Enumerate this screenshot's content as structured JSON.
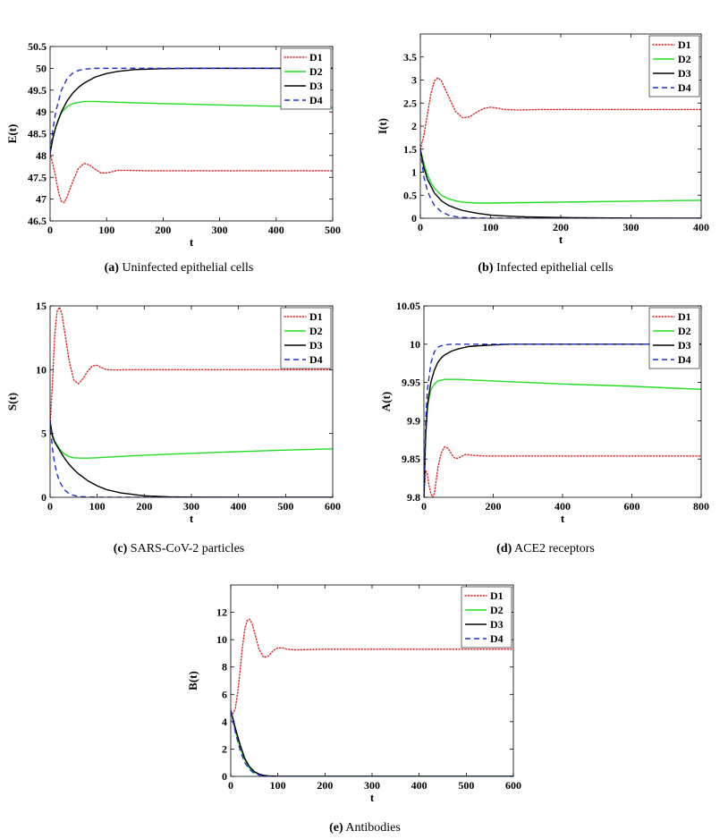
{
  "figure": {
    "captions": [
      {
        "letter": "(a)",
        "text": "Uninfected epithelial cells"
      },
      {
        "letter": "(b)",
        "text": "Infected epithelial cells"
      },
      {
        "letter": "(c)",
        "text": "SARS-CoV-2 particles"
      },
      {
        "letter": "(d)",
        "text": "ACE2 receptors"
      },
      {
        "letter": "(e)",
        "text": "Antibodies"
      }
    ]
  },
  "legend_styles": {
    "D1": {
      "color": "#e02020",
      "dash": "dotted"
    },
    "D2": {
      "color": "#22dd22",
      "dash": "solid"
    },
    "D3": {
      "color": "#000000",
      "dash": "solid"
    },
    "D4": {
      "color": "#1f2fd0",
      "dash": "dashed"
    }
  },
  "chart_data": [
    {
      "type": "line",
      "panel": "a",
      "xlabel": "t",
      "ylabel": "E(t)",
      "xlim": [
        0,
        500
      ],
      "ylim": [
        46.5,
        50.5
      ],
      "xticks": [
        0,
        100,
        200,
        300,
        400,
        500
      ],
      "yticks": [
        46.5,
        47,
        47.5,
        48,
        48.5,
        49,
        49.5,
        50,
        50.5
      ],
      "legend": [
        "D1",
        "D2",
        "D3",
        "D4"
      ],
      "series": [
        {
          "name": "D1",
          "x": [
            0,
            5,
            10,
            15,
            20,
            25,
            30,
            40,
            50,
            60,
            70,
            80,
            90,
            100,
            110,
            120,
            140,
            170,
            200,
            300,
            400,
            500
          ],
          "y": [
            48.05,
            47.8,
            47.5,
            47.15,
            46.95,
            46.92,
            47.05,
            47.4,
            47.7,
            47.82,
            47.78,
            47.68,
            47.6,
            47.6,
            47.63,
            47.66,
            47.66,
            47.65,
            47.65,
            47.65,
            47.65,
            47.65
          ]
        },
        {
          "name": "D2",
          "x": [
            0,
            5,
            10,
            15,
            20,
            30,
            40,
            50,
            60,
            70,
            80,
            100,
            150,
            200,
            300,
            400,
            500
          ],
          "y": [
            48.05,
            48.4,
            48.65,
            48.85,
            48.98,
            49.12,
            49.19,
            49.22,
            49.24,
            49.24,
            49.24,
            49.23,
            49.21,
            49.19,
            49.16,
            49.13,
            49.1
          ]
        },
        {
          "name": "D3",
          "x": [
            0,
            5,
            10,
            20,
            30,
            40,
            50,
            60,
            80,
            100,
            120,
            150,
            200,
            250,
            300,
            400,
            500
          ],
          "y": [
            48.05,
            48.4,
            48.65,
            49.0,
            49.25,
            49.43,
            49.56,
            49.66,
            49.8,
            49.88,
            49.93,
            49.97,
            49.99,
            50.0,
            50.0,
            50.0,
            50.0
          ]
        },
        {
          "name": "D4",
          "x": [
            0,
            5,
            10,
            20,
            30,
            40,
            50,
            60,
            80,
            100,
            150,
            200,
            300,
            400,
            500
          ],
          "y": [
            48.05,
            48.6,
            49.0,
            49.5,
            49.76,
            49.89,
            49.95,
            49.98,
            50.0,
            50.0,
            50.0,
            50.0,
            50.0,
            50.0,
            50.0
          ]
        }
      ]
    },
    {
      "type": "line",
      "panel": "b",
      "xlabel": "t",
      "ylabel": "I(t)",
      "xlim": [
        0,
        400
      ],
      "ylim": [
        0,
        4
      ],
      "xticks": [
        0,
        100,
        200,
        300,
        400
      ],
      "yticks": [
        0,
        0.5,
        1,
        1.5,
        2,
        2.5,
        3,
        3.5
      ],
      "legend": [
        "D1",
        "D2",
        "D3",
        "D4"
      ],
      "series": [
        {
          "name": "D1",
          "x": [
            0,
            5,
            10,
            15,
            20,
            25,
            30,
            40,
            50,
            60,
            70,
            80,
            90,
            100,
            110,
            120,
            140,
            170,
            200,
            300,
            400
          ],
          "y": [
            1.5,
            1.8,
            2.25,
            2.7,
            2.98,
            3.05,
            2.98,
            2.65,
            2.32,
            2.18,
            2.2,
            2.3,
            2.38,
            2.41,
            2.39,
            2.36,
            2.35,
            2.36,
            2.36,
            2.36,
            2.36
          ]
        },
        {
          "name": "D2",
          "x": [
            0,
            5,
            10,
            15,
            20,
            30,
            40,
            50,
            60,
            80,
            100,
            150,
            200,
            300,
            400
          ],
          "y": [
            1.5,
            1.2,
            0.95,
            0.78,
            0.65,
            0.5,
            0.42,
            0.38,
            0.35,
            0.33,
            0.33,
            0.34,
            0.35,
            0.37,
            0.39
          ]
        },
        {
          "name": "D3",
          "x": [
            0,
            5,
            10,
            20,
            30,
            40,
            50,
            60,
            80,
            100,
            120,
            150,
            200,
            250,
            300,
            400
          ],
          "y": [
            1.5,
            1.1,
            0.85,
            0.55,
            0.38,
            0.28,
            0.22,
            0.17,
            0.11,
            0.07,
            0.05,
            0.03,
            0.015,
            0.008,
            0.004,
            0.001
          ]
        },
        {
          "name": "D4",
          "x": [
            0,
            5,
            10,
            15,
            20,
            30,
            40,
            50,
            60,
            80,
            100,
            150,
            200,
            400
          ],
          "y": [
            1.5,
            0.9,
            0.6,
            0.42,
            0.28,
            0.14,
            0.07,
            0.035,
            0.018,
            0.005,
            0.001,
            0.0,
            0.0,
            0.0
          ]
        }
      ]
    },
    {
      "type": "line",
      "panel": "c",
      "xlabel": "t",
      "ylabel": "S(t)",
      "xlim": [
        0,
        600
      ],
      "ylim": [
        0,
        15
      ],
      "xticks": [
        0,
        100,
        200,
        300,
        400,
        500,
        600
      ],
      "yticks": [
        0,
        5,
        10,
        15
      ],
      "legend": [
        "D1",
        "D2",
        "D3",
        "D4"
      ],
      "series": [
        {
          "name": "D1",
          "x": [
            0,
            5,
            10,
            15,
            20,
            25,
            30,
            40,
            50,
            60,
            70,
            80,
            90,
            100,
            110,
            120,
            140,
            170,
            200,
            300,
            400,
            500,
            600
          ],
          "y": [
            5.5,
            9.0,
            12.8,
            14.6,
            14.9,
            14.4,
            13.2,
            10.8,
            9.2,
            8.9,
            9.3,
            9.9,
            10.3,
            10.35,
            10.15,
            10.0,
            9.98,
            10.0,
            10.0,
            10.0,
            10.0,
            10.0,
            10.0
          ]
        },
        {
          "name": "D2",
          "x": [
            0,
            5,
            10,
            20,
            30,
            40,
            50,
            60,
            70,
            80,
            100,
            150,
            200,
            300,
            400,
            500,
            600
          ],
          "y": [
            5.5,
            4.9,
            4.4,
            3.8,
            3.4,
            3.2,
            3.1,
            3.08,
            3.07,
            3.07,
            3.1,
            3.2,
            3.3,
            3.45,
            3.58,
            3.7,
            3.8
          ]
        },
        {
          "name": "D3",
          "x": [
            0,
            5,
            10,
            20,
            30,
            40,
            50,
            60,
            80,
            100,
            120,
            150,
            200,
            250,
            300,
            400,
            600
          ],
          "y": [
            6.0,
            4.8,
            4.3,
            3.7,
            3.1,
            2.6,
            2.2,
            1.85,
            1.3,
            0.9,
            0.6,
            0.35,
            0.12,
            0.04,
            0.015,
            0.002,
            0.0
          ]
        },
        {
          "name": "D4",
          "x": [
            0,
            5,
            10,
            15,
            20,
            30,
            40,
            50,
            60,
            80,
            100,
            150,
            200,
            600
          ],
          "y": [
            6.0,
            3.8,
            2.6,
            1.8,
            1.25,
            0.6,
            0.3,
            0.15,
            0.07,
            0.02,
            0.005,
            0.0,
            0.0,
            0.0
          ]
        }
      ]
    },
    {
      "type": "line",
      "panel": "d",
      "xlabel": "t",
      "ylabel": "A(t)",
      "xlim": [
        0,
        800
      ],
      "ylim": [
        9.8,
        10.05
      ],
      "xticks": [
        0,
        200,
        400,
        600,
        800
      ],
      "yticks": [
        9.8,
        9.85,
        9.9,
        9.95,
        10,
        10.05
      ],
      "legend": [
        "D1",
        "D2",
        "D3",
        "D4"
      ],
      "series": [
        {
          "name": "D1",
          "x": [
            0,
            5,
            10,
            15,
            20,
            25,
            30,
            35,
            40,
            50,
            60,
            70,
            80,
            90,
            100,
            110,
            120,
            140,
            170,
            200,
            400,
            600,
            800
          ],
          "y": [
            9.8,
            9.835,
            9.83,
            9.815,
            9.805,
            9.8,
            9.805,
            9.82,
            9.838,
            9.858,
            9.866,
            9.864,
            9.856,
            9.851,
            9.851,
            9.854,
            9.856,
            9.855,
            9.854,
            9.854,
            9.854,
            9.854,
            9.854
          ]
        },
        {
          "name": "D2",
          "x": [
            0,
            5,
            10,
            15,
            20,
            30,
            40,
            60,
            80,
            100,
            150,
            200,
            400,
            600,
            800
          ],
          "y": [
            9.8,
            9.88,
            9.915,
            9.93,
            9.94,
            9.948,
            9.952,
            9.954,
            9.954,
            9.954,
            9.953,
            9.952,
            9.948,
            9.945,
            9.941
          ]
        },
        {
          "name": "D3",
          "x": [
            0,
            5,
            10,
            20,
            30,
            40,
            50,
            60,
            80,
            100,
            130,
            160,
            200,
            250,
            300,
            400,
            800
          ],
          "y": [
            9.8,
            9.88,
            9.92,
            9.95,
            9.966,
            9.976,
            9.982,
            9.986,
            9.991,
            9.994,
            9.997,
            9.998,
            9.999,
            10.0,
            10.0,
            10.0,
            10.0
          ]
        },
        {
          "name": "D4",
          "x": [
            0,
            5,
            10,
            20,
            30,
            40,
            50,
            60,
            80,
            100,
            150,
            200,
            800
          ],
          "y": [
            9.8,
            9.9,
            9.94,
            9.975,
            9.99,
            9.996,
            9.998,
            9.999,
            10.0,
            10.0,
            10.0,
            10.0,
            10.0
          ]
        }
      ]
    },
    {
      "type": "line",
      "panel": "e",
      "xlabel": "t",
      "ylabel": "B(t)",
      "xlim": [
        0,
        600
      ],
      "ylim": [
        0,
        14
      ],
      "xticks": [
        0,
        100,
        200,
        300,
        400,
        500,
        600
      ],
      "yticks": [
        0,
        2,
        4,
        6,
        8,
        10,
        12
      ],
      "legend": [
        "D1",
        "D2",
        "D3",
        "D4"
      ],
      "series": [
        {
          "name": "D1",
          "x": [
            0,
            5,
            10,
            15,
            20,
            25,
            30,
            35,
            40,
            45,
            50,
            60,
            70,
            80,
            90,
            100,
            110,
            120,
            140,
            170,
            200,
            300,
            400,
            500,
            600
          ],
          "y": [
            4.8,
            4.6,
            5.0,
            6.2,
            7.8,
            9.5,
            10.8,
            11.4,
            11.5,
            11.2,
            10.6,
            9.3,
            8.7,
            8.8,
            9.2,
            9.4,
            9.4,
            9.3,
            9.25,
            9.28,
            9.3,
            9.3,
            9.3,
            9.3,
            9.3
          ]
        },
        {
          "name": "D2",
          "x": [
            0,
            5,
            10,
            20,
            30,
            40,
            50,
            60,
            70,
            80,
            100,
            150,
            600
          ],
          "y": [
            4.8,
            4.0,
            3.3,
            2.1,
            1.2,
            0.6,
            0.3,
            0.14,
            0.06,
            0.03,
            0.01,
            0.0,
            0.0
          ]
        },
        {
          "name": "D3",
          "x": [
            0,
            5,
            10,
            20,
            30,
            40,
            50,
            60,
            70,
            80,
            100,
            150,
            600
          ],
          "y": [
            4.8,
            4.2,
            3.5,
            2.3,
            1.3,
            0.7,
            0.35,
            0.17,
            0.08,
            0.04,
            0.01,
            0.0,
            0.0
          ]
        },
        {
          "name": "D4",
          "x": [
            0,
            5,
            10,
            20,
            30,
            40,
            50,
            60,
            70,
            80,
            100,
            150,
            600
          ],
          "y": [
            4.8,
            4.0,
            3.2,
            1.9,
            1.0,
            0.5,
            0.22,
            0.1,
            0.04,
            0.02,
            0.005,
            0.0,
            0.0
          ]
        }
      ]
    }
  ]
}
